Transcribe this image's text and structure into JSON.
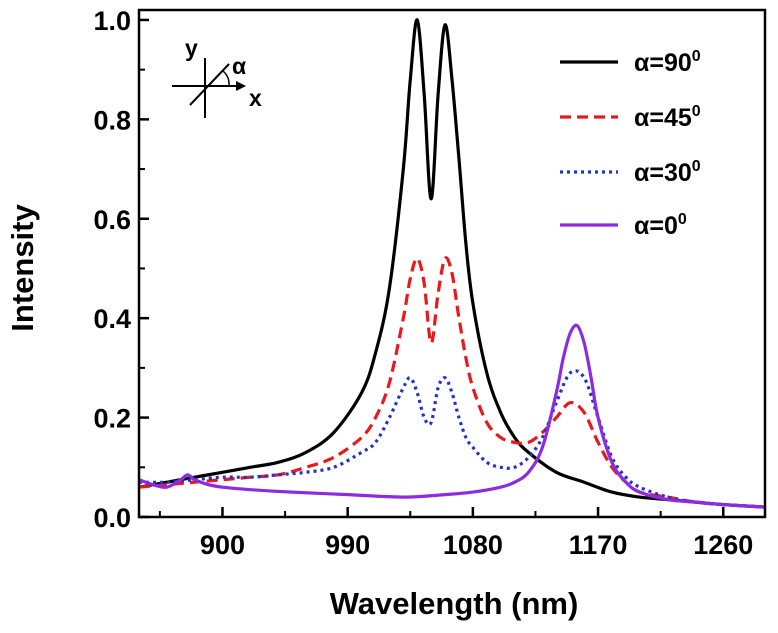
{
  "chart_data": {
    "type": "line",
    "title": "",
    "xlabel": "Wavelength (nm)",
    "ylabel": "Intensity",
    "xlim": [
      840,
      1290
    ],
    "ylim": [
      0,
      1.02
    ],
    "xticks": [
      900,
      990,
      1080,
      1170,
      1260
    ],
    "xtick_labels": [
      "900",
      "990",
      "1080",
      "1170",
      "1260"
    ],
    "yticks": [
      0.0,
      0.2,
      0.4,
      0.6,
      0.8,
      1.0
    ],
    "ytick_labels": [
      "0.0",
      "0.2",
      "0.4",
      "0.6",
      "0.8",
      "1.0"
    ],
    "legend_position": "top-right",
    "inset": {
      "y_label": "y",
      "x_label": "x",
      "angle_label": "α"
    },
    "series": [
      {
        "name": "α=90",
        "base": "α=90",
        "sup": "0",
        "color": "#000000",
        "dash": "solid",
        "x": [
          840,
          860,
          880,
          900,
          920,
          940,
          960,
          980,
          1000,
          1010,
          1020,
          1030,
          1035,
          1040,
          1045,
          1050,
          1055,
          1060,
          1065,
          1070,
          1075,
          1080,
          1090,
          1100,
          1110,
          1120,
          1140,
          1160,
          1180,
          1200,
          1220,
          1240,
          1260,
          1290
        ],
        "y": [
          0.06,
          0.07,
          0.08,
          0.09,
          0.1,
          0.11,
          0.13,
          0.17,
          0.25,
          0.33,
          0.46,
          0.7,
          0.88,
          1.0,
          0.85,
          0.64,
          0.85,
          0.99,
          0.88,
          0.72,
          0.55,
          0.43,
          0.29,
          0.21,
          0.16,
          0.13,
          0.09,
          0.07,
          0.05,
          0.04,
          0.035,
          0.03,
          0.025,
          0.02
        ]
      },
      {
        "name": "α=45",
        "base": "α=45",
        "sup": "0",
        "color": "#e8191e",
        "dash": "dashed",
        "x": [
          840,
          860,
          880,
          900,
          920,
          940,
          960,
          980,
          1000,
          1010,
          1020,
          1030,
          1035,
          1040,
          1045,
          1050,
          1055,
          1060,
          1065,
          1070,
          1075,
          1080,
          1090,
          1100,
          1110,
          1120,
          1130,
          1140,
          1150,
          1160,
          1170,
          1180,
          1190,
          1200,
          1220,
          1240,
          1260,
          1290
        ],
        "y": [
          0.06,
          0.065,
          0.07,
          0.075,
          0.08,
          0.085,
          0.1,
          0.12,
          0.16,
          0.2,
          0.27,
          0.4,
          0.48,
          0.52,
          0.47,
          0.35,
          0.45,
          0.52,
          0.49,
          0.4,
          0.32,
          0.26,
          0.19,
          0.16,
          0.15,
          0.15,
          0.17,
          0.2,
          0.23,
          0.21,
          0.15,
          0.1,
          0.07,
          0.05,
          0.04,
          0.03,
          0.025,
          0.02
        ]
      },
      {
        "name": "α=30",
        "base": "α=30",
        "sup": "0",
        "color": "#2233c8",
        "dash": "dotted",
        "x": [
          840,
          860,
          880,
          900,
          920,
          940,
          960,
          980,
          1000,
          1010,
          1020,
          1030,
          1035,
          1040,
          1045,
          1050,
          1055,
          1060,
          1065,
          1070,
          1075,
          1080,
          1090,
          1100,
          1110,
          1120,
          1130,
          1140,
          1150,
          1160,
          1170,
          1180,
          1190,
          1200,
          1220,
          1240,
          1260,
          1290
        ],
        "y": [
          0.07,
          0.07,
          0.075,
          0.08,
          0.08,
          0.085,
          0.09,
          0.1,
          0.13,
          0.15,
          0.2,
          0.26,
          0.28,
          0.25,
          0.2,
          0.19,
          0.26,
          0.28,
          0.25,
          0.2,
          0.16,
          0.14,
          0.11,
          0.1,
          0.1,
          0.12,
          0.16,
          0.23,
          0.29,
          0.28,
          0.2,
          0.12,
          0.08,
          0.06,
          0.04,
          0.03,
          0.025,
          0.02
        ]
      },
      {
        "name": "α=0",
        "base": "α=0",
        "sup": "0",
        "color": "#8b2be2",
        "dash": "solid",
        "x": [
          840,
          850,
          860,
          870,
          875,
          880,
          890,
          900,
          920,
          950,
          990,
          1030,
          1060,
          1080,
          1100,
          1110,
          1120,
          1130,
          1140,
          1145,
          1150,
          1155,
          1160,
          1165,
          1170,
          1180,
          1190,
          1200,
          1220,
          1240,
          1260,
          1290
        ],
        "y": [
          0.075,
          0.065,
          0.06,
          0.075,
          0.085,
          0.075,
          0.065,
          0.06,
          0.055,
          0.05,
          0.045,
          0.04,
          0.045,
          0.05,
          0.06,
          0.07,
          0.09,
          0.14,
          0.25,
          0.32,
          0.37,
          0.385,
          0.35,
          0.28,
          0.2,
          0.11,
          0.07,
          0.05,
          0.035,
          0.03,
          0.025,
          0.02
        ]
      }
    ]
  }
}
